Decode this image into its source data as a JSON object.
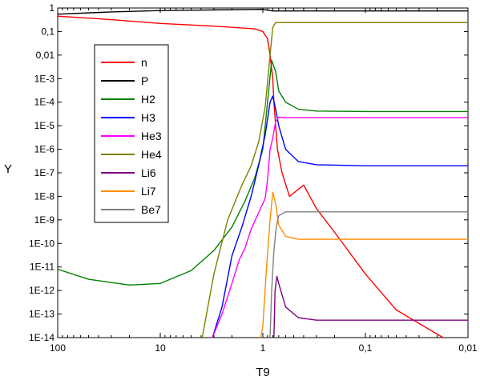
{
  "chart_data": {
    "type": "line",
    "title": "",
    "xlabel": "T9",
    "ylabel": "Y",
    "x_scale": "log-reversed",
    "y_scale": "log",
    "xlim": [
      100,
      0.01
    ],
    "ylim": [
      1e-14,
      1
    ],
    "grid": false,
    "legend_position": "upper-left",
    "x_ticks": [
      {
        "value": 100,
        "label": "100"
      },
      {
        "value": 10,
        "label": "10"
      },
      {
        "value": 1,
        "label": "1"
      },
      {
        "value": 0.1,
        "label": "0,1"
      },
      {
        "value": 0.01,
        "label": "0,01"
      }
    ],
    "y_ticks": [
      {
        "value": 1,
        "label": "1"
      },
      {
        "value": 0.1,
        "label": "0,1"
      },
      {
        "value": 0.01,
        "label": "0,01"
      },
      {
        "value": 0.001,
        "label": "1E-3"
      },
      {
        "value": 0.0001,
        "label": "1E-4"
      },
      {
        "value": 1e-05,
        "label": "1E-5"
      },
      {
        "value": 1e-06,
        "label": "1E-6"
      },
      {
        "value": 1e-07,
        "label": "1E-7"
      },
      {
        "value": 1e-08,
        "label": "1E-8"
      },
      {
        "value": 1e-09,
        "label": "1E-9"
      },
      {
        "value": 1e-10,
        "label": "1E-10"
      },
      {
        "value": 1e-11,
        "label": "1E-11"
      },
      {
        "value": 1e-12,
        "label": "1E-12"
      },
      {
        "value": 1e-13,
        "label": "1E-13"
      },
      {
        "value": 1e-14,
        "label": "1E-14"
      }
    ],
    "series": [
      {
        "name": "n",
        "color": "#ff0000",
        "points": [
          [
            100,
            0.45
          ],
          [
            30,
            0.32
          ],
          [
            10,
            0.22
          ],
          [
            3,
            0.17
          ],
          [
            1.2,
            0.13
          ],
          [
            1.0,
            0.1
          ],
          [
            0.9,
            0.05
          ],
          [
            0.85,
            0.01
          ],
          [
            0.8,
            0.001
          ],
          [
            0.78,
            0.0001
          ],
          [
            0.75,
            1e-05
          ],
          [
            0.72,
            1e-06
          ],
          [
            0.65,
            1e-07
          ],
          [
            0.55,
            1e-08
          ],
          [
            0.4,
            3e-08
          ],
          [
            0.3,
            3e-09
          ],
          [
            0.2,
            3e-10
          ],
          [
            0.1,
            5e-12
          ],
          [
            0.05,
            1.5e-13
          ],
          [
            0.0175,
            1e-14
          ]
        ]
      },
      {
        "name": "P",
        "color": "#000000",
        "points": [
          [
            100,
            0.55
          ],
          [
            30,
            0.68
          ],
          [
            10,
            0.78
          ],
          [
            3,
            0.83
          ],
          [
            1.2,
            0.87
          ],
          [
            1.0,
            0.88
          ],
          [
            0.8,
            0.75
          ],
          [
            0.5,
            0.75
          ],
          [
            0.1,
            0.75
          ],
          [
            0.01,
            0.75
          ]
        ]
      },
      {
        "name": "H2",
        "color": "#008000",
        "points": [
          [
            100,
            8e-12
          ],
          [
            50,
            3e-12
          ],
          [
            20,
            1.7e-12
          ],
          [
            10,
            2e-12
          ],
          [
            5,
            7e-12
          ],
          [
            3,
            5e-11
          ],
          [
            2,
            5e-10
          ],
          [
            1.5,
            6e-09
          ],
          [
            1.2,
            6e-08
          ],
          [
            1.0,
            1e-06
          ],
          [
            0.9,
            0.0001
          ],
          [
            0.82,
            0.006
          ],
          [
            0.75,
            0.002
          ],
          [
            0.7,
            0.0003
          ],
          [
            0.6,
            0.0001
          ],
          [
            0.45,
            5e-05
          ],
          [
            0.3,
            4.2e-05
          ],
          [
            0.1,
            4e-05
          ],
          [
            0.01,
            4e-05
          ]
        ]
      },
      {
        "name": "H3",
        "color": "#0000ff",
        "points": [
          [
            3.1,
            1e-14
          ],
          [
            2.5,
            2e-13
          ],
          [
            2,
            3e-11
          ],
          [
            1.6,
            5e-10
          ],
          [
            1.3,
            1e-08
          ],
          [
            1.1,
            2e-07
          ],
          [
            0.95,
            4e-06
          ],
          [
            0.85,
            0.0001
          ],
          [
            0.8,
            0.00018
          ],
          [
            0.75,
            5e-05
          ],
          [
            0.7,
            1e-05
          ],
          [
            0.6,
            1e-06
          ],
          [
            0.45,
            3e-07
          ],
          [
            0.3,
            2.2e-07
          ],
          [
            0.1,
            2e-07
          ],
          [
            0.01,
            2e-07
          ]
        ]
      },
      {
        "name": "He3",
        "color": "#ff00ff",
        "points": [
          [
            3.1,
            1e-14
          ],
          [
            2.5,
            1e-13
          ],
          [
            2,
            2e-12
          ],
          [
            1.7,
            2e-11
          ],
          [
            1.5,
            6e-11
          ],
          [
            1.3,
            4e-10
          ],
          [
            1.1,
            2e-09
          ],
          [
            0.95,
            8e-09
          ],
          [
            0.9,
            5e-08
          ],
          [
            0.85,
            1e-06
          ],
          [
            0.8,
            3e-06
          ],
          [
            0.75,
            1.5e-05
          ],
          [
            0.7,
            2.3e-05
          ],
          [
            0.6,
            2.2e-05
          ],
          [
            0.3,
            2.2e-05
          ],
          [
            0.01,
            2.2e-05
          ]
        ]
      },
      {
        "name": "He4",
        "color": "#808000",
        "points": [
          [
            3.9,
            1e-14
          ],
          [
            3,
            5e-12
          ],
          [
            2.2,
            1e-09
          ],
          [
            1.6,
            3e-08
          ],
          [
            1.3,
            2e-07
          ],
          [
            1.1,
            2e-06
          ],
          [
            0.95,
            6e-05
          ],
          [
            0.85,
            0.01
          ],
          [
            0.8,
            0.15
          ],
          [
            0.75,
            0.24
          ],
          [
            0.5,
            0.24
          ],
          [
            0.1,
            0.24
          ],
          [
            0.01,
            0.24
          ]
        ]
      },
      {
        "name": "Li6",
        "color": "#800080",
        "points": [
          [
            0.78,
            1e-14
          ],
          [
            0.76,
            1e-12
          ],
          [
            0.73,
            4e-12
          ],
          [
            0.7,
            2e-12
          ],
          [
            0.6,
            2e-13
          ],
          [
            0.45,
            7e-14
          ],
          [
            0.3,
            5.5e-14
          ],
          [
            0.1,
            5.5e-14
          ],
          [
            0.01,
            5.5e-14
          ]
        ]
      },
      {
        "name": "Li7",
        "color": "#ff8c00",
        "points": [
          [
            1.05,
            1e-14
          ],
          [
            1.0,
            3e-14
          ],
          [
            0.92,
            1e-11
          ],
          [
            0.85,
            1e-09
          ],
          [
            0.8,
            1.5e-08
          ],
          [
            0.75,
            5e-09
          ],
          [
            0.7,
            6e-10
          ],
          [
            0.6,
            2e-10
          ],
          [
            0.45,
            1.5e-10
          ],
          [
            0.3,
            1.5e-10
          ],
          [
            0.1,
            1.5e-10
          ],
          [
            0.01,
            1.5e-10
          ]
        ]
      },
      {
        "name": "Be7",
        "color": "#808080",
        "points": [
          [
            0.85,
            1e-14
          ],
          [
            0.82,
            1e-12
          ],
          [
            0.78,
            5e-11
          ],
          [
            0.74,
            5e-10
          ],
          [
            0.7,
            1.5e-09
          ],
          [
            0.6,
            2.2e-09
          ],
          [
            0.4,
            2.2e-09
          ],
          [
            0.1,
            2.2e-09
          ],
          [
            0.01,
            2.2e-09
          ]
        ]
      }
    ]
  }
}
